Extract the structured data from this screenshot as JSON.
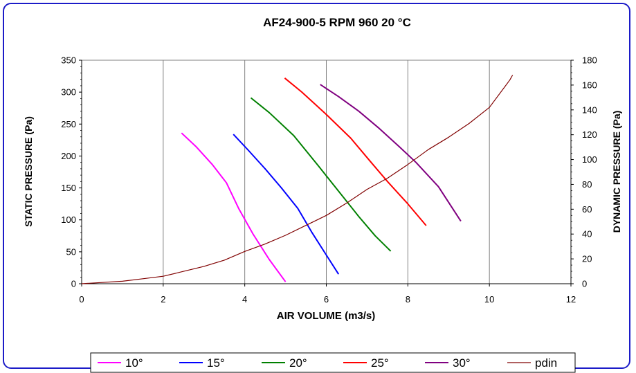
{
  "chart_data": {
    "type": "line",
    "title": "AF24-900-5 RPM 960 20 °C",
    "xlabel": "AIR VOLUME (m3/s)",
    "ylabel": "STATIC PRESSURE (Pa)",
    "y2label": "DYNAMIC PRESSURE (Pa)",
    "xlim": [
      0,
      12
    ],
    "ylim": [
      0,
      350
    ],
    "y2lim": [
      0,
      180
    ],
    "x_ticks": [
      0,
      2,
      4,
      6,
      8,
      10,
      12
    ],
    "y_ticks": [
      0,
      50,
      100,
      150,
      200,
      250,
      300,
      350
    ],
    "y2_ticks": [
      0,
      20,
      40,
      60,
      80,
      100,
      120,
      140,
      160,
      180
    ],
    "grid": "vertical",
    "legend": "bottom",
    "series": [
      {
        "name": "10°",
        "color": "#ff00ff",
        "axis": "left",
        "points": [
          [
            2.45,
            236
          ],
          [
            2.8,
            215
          ],
          [
            3.2,
            187
          ],
          [
            3.55,
            158
          ],
          [
            3.85,
            118
          ],
          [
            4.2,
            78
          ],
          [
            4.6,
            38
          ],
          [
            5.0,
            3
          ]
        ]
      },
      {
        "name": "15°",
        "color": "#0000ff",
        "axis": "left",
        "points": [
          [
            3.72,
            234
          ],
          [
            4.1,
            208
          ],
          [
            4.5,
            180
          ],
          [
            4.9,
            150
          ],
          [
            5.3,
            118
          ],
          [
            5.65,
            80
          ],
          [
            6.0,
            45
          ],
          [
            6.3,
            15
          ]
        ]
      },
      {
        "name": "20°",
        "color": "#008000",
        "axis": "left",
        "points": [
          [
            4.15,
            291
          ],
          [
            4.6,
            268
          ],
          [
            5.2,
            232
          ],
          [
            5.8,
            185
          ],
          [
            6.3,
            145
          ],
          [
            6.8,
            105
          ],
          [
            7.2,
            75
          ],
          [
            7.58,
            51
          ]
        ]
      },
      {
        "name": "25°",
        "color": "#ff0000",
        "axis": "left",
        "points": [
          [
            4.98,
            322
          ],
          [
            5.4,
            300
          ],
          [
            6.0,
            265
          ],
          [
            6.6,
            228
          ],
          [
            7.1,
            190
          ],
          [
            7.5,
            160
          ],
          [
            8.0,
            125
          ],
          [
            8.45,
            91
          ]
        ]
      },
      {
        "name": "30°",
        "color": "#800080",
        "axis": "left",
        "points": [
          [
            5.85,
            312
          ],
          [
            6.3,
            293
          ],
          [
            6.8,
            270
          ],
          [
            7.3,
            243
          ],
          [
            7.8,
            214
          ],
          [
            8.2,
            190
          ],
          [
            8.75,
            152
          ],
          [
            9.3,
            98
          ]
        ]
      },
      {
        "name": "pdin",
        "color": "#800000",
        "axis": "right",
        "points": [
          [
            0,
            0
          ],
          [
            0.5,
            1
          ],
          [
            1.0,
            2
          ],
          [
            1.5,
            4
          ],
          [
            2.0,
            6
          ],
          [
            2.5,
            10
          ],
          [
            3.0,
            14
          ],
          [
            3.5,
            19
          ],
          [
            4.0,
            26
          ],
          [
            4.5,
            32
          ],
          [
            5.0,
            39
          ],
          [
            5.5,
            47
          ],
          [
            6.0,
            55
          ],
          [
            6.5,
            65
          ],
          [
            7.0,
            76
          ],
          [
            7.5,
            85
          ],
          [
            8.0,
            96
          ],
          [
            8.5,
            108
          ],
          [
            9.0,
            118
          ],
          [
            9.5,
            129
          ],
          [
            10.0,
            142
          ],
          [
            10.5,
            164
          ],
          [
            10.57,
            168
          ]
        ]
      }
    ]
  }
}
